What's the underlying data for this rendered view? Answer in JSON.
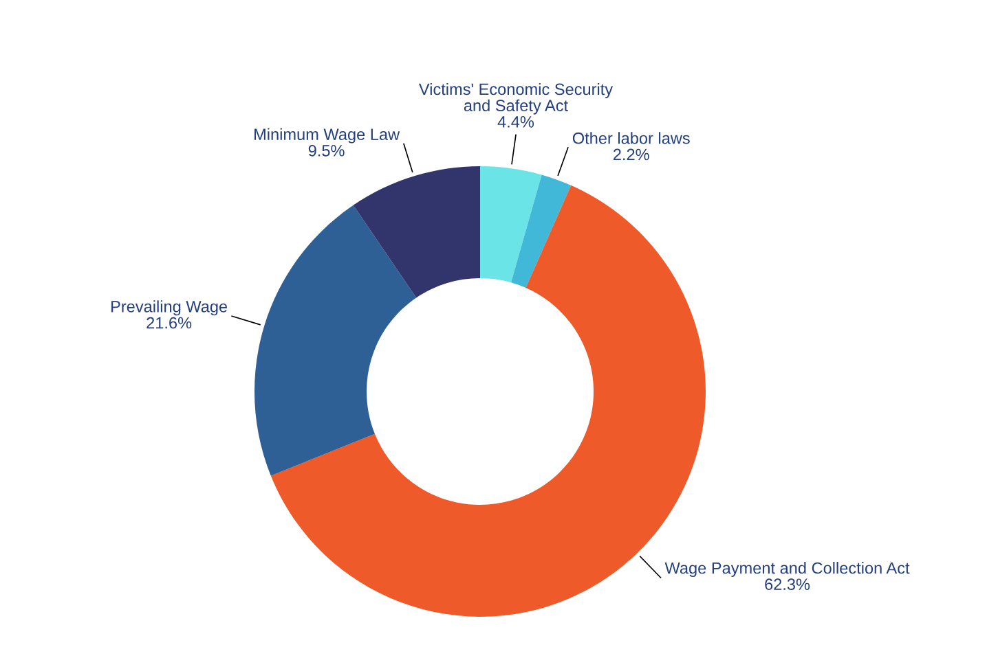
{
  "chart_data": {
    "type": "donut",
    "categories": [
      "Victims' Economic Security\nand Safety Act",
      "Other labor laws",
      "Wage Payment and Collection Act",
      "Prevailing Wage",
      "Minimum Wage Law"
    ],
    "values": [
      4.4,
      2.2,
      62.3,
      21.6,
      9.5
    ],
    "colors": [
      "#6ae4e6",
      "#42b8d8",
      "#ef5a2a",
      "#2e6096",
      "#31356b"
    ],
    "value_labels": [
      "4.4%",
      "2.2%",
      "62.3%",
      "21.6%",
      "9.5%"
    ]
  }
}
